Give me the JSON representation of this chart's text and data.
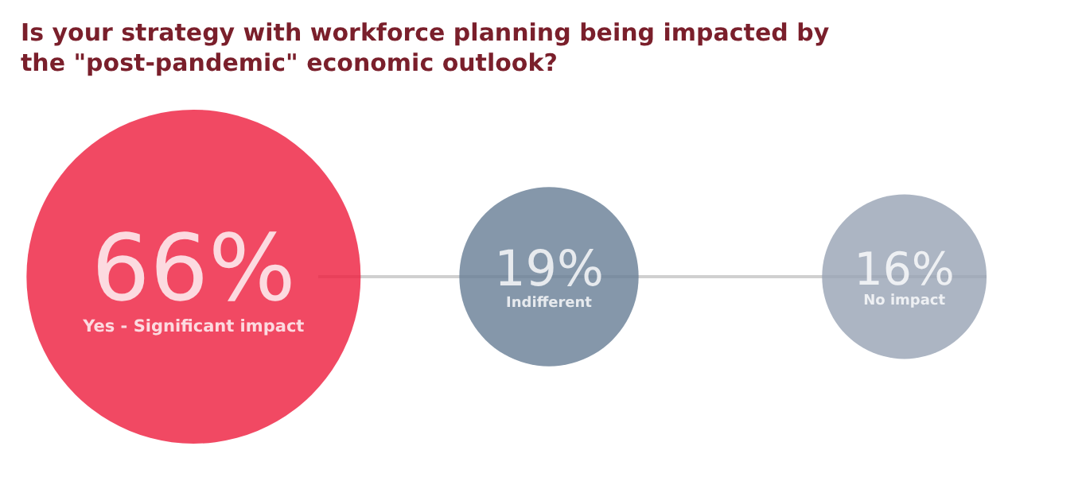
{
  "chart_data": {
    "type": "other",
    "title": "Is your strategy with workforce planning being impacted by the \"post-pandemic\" economic outlook?",
    "categories": [
      "Yes - Significant impact",
      "Indifferent",
      "No impact"
    ],
    "values": [
      66,
      19,
      16
    ],
    "value_labels": [
      "66%",
      "19%",
      "16%"
    ],
    "colors": [
      "#ee1b3c",
      "#677d95",
      "#97a3b4"
    ]
  }
}
